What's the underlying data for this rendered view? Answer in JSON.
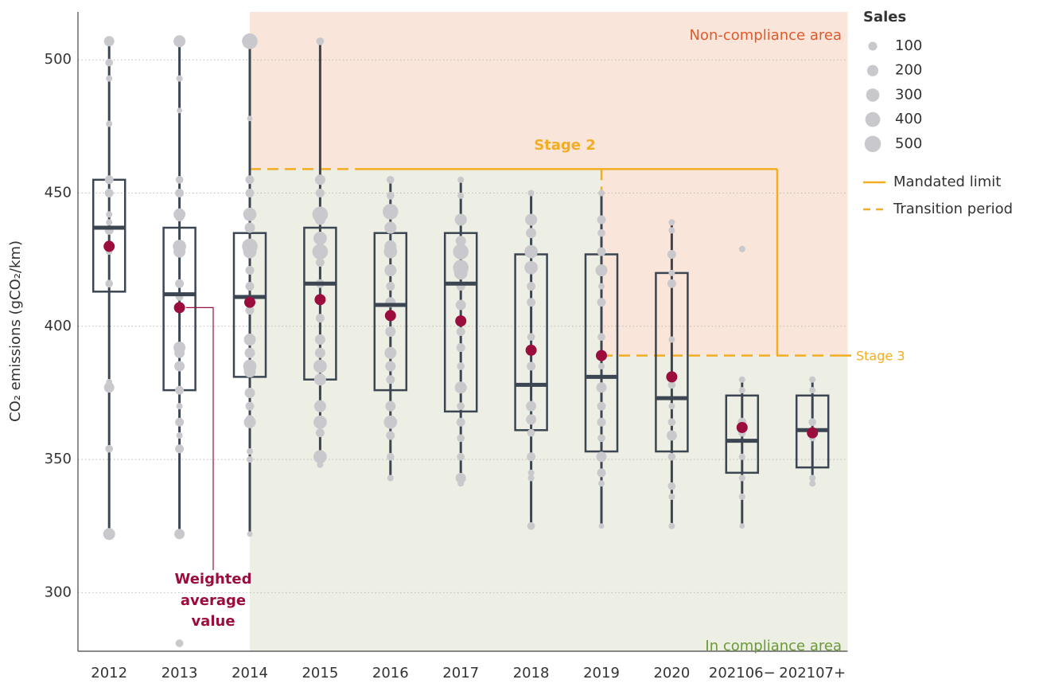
{
  "chart_data": {
    "type": "box",
    "y_label": "CO₂ emissions (gCO₂/km)",
    "categories": [
      "2012",
      "2013",
      "2014",
      "2015",
      "2016",
      "2017",
      "2018",
      "2019",
      "2020",
      "202106−",
      "202107+"
    ],
    "whisker_low": [
      322,
      322,
      322,
      348,
      343,
      341,
      325,
      325,
      325,
      325,
      341
    ],
    "q1": [
      413,
      376,
      381,
      380,
      376,
      368,
      361,
      353,
      353,
      345,
      347
    ],
    "median": [
      437,
      412,
      411,
      416,
      408,
      416,
      378,
      381,
      373,
      357,
      361
    ],
    "q3": [
      455,
      437,
      435,
      437,
      435,
      435,
      427,
      427,
      420,
      374,
      374
    ],
    "whisker_high": [
      507,
      507,
      507,
      507,
      455,
      455,
      450,
      450,
      439,
      380,
      380
    ],
    "mean": [
      430,
      407,
      409,
      410,
      404,
      402,
      391,
      389,
      381,
      362,
      360
    ],
    "box_color": "#3b4652",
    "mean_color": "#9b0d3d",
    "point_color": "#c9c8cc",
    "points": [
      {
        "values": [
          507,
          499,
          493,
          476,
          455,
          450,
          442,
          439,
          436,
          430,
          428,
          416,
          379,
          377,
          354,
          322
        ],
        "sales": [
          100,
          40,
          20,
          20,
          60,
          60,
          20,
          20,
          60,
          20,
          20,
          40,
          20,
          100,
          40,
          150
        ]
      },
      {
        "values": [
          507,
          493,
          481,
          455,
          450,
          442,
          441,
          430,
          428,
          416,
          411,
          407,
          392,
          390,
          385,
          376,
          370,
          364,
          359,
          354,
          322,
          281
        ],
        "sales": [
          150,
          20,
          10,
          40,
          60,
          150,
          60,
          200,
          150,
          60,
          40,
          40,
          150,
          100,
          100,
          60,
          20,
          60,
          20,
          60,
          100,
          40
        ]
      },
      {
        "values": [
          507,
          478,
          455,
          450,
          442,
          437,
          430,
          428,
          421,
          415,
          406,
          395,
          390,
          385,
          383,
          375,
          370,
          365,
          364,
          353,
          350,
          322
        ],
        "sales": [
          300,
          10,
          60,
          60,
          200,
          100,
          300,
          200,
          60,
          60,
          60,
          150,
          100,
          200,
          150,
          100,
          60,
          60,
          150,
          20,
          20,
          10
        ]
      },
      {
        "values": [
          507,
          455,
          450,
          442,
          440,
          433,
          428,
          424,
          416,
          410,
          403,
          395,
          390,
          385,
          380,
          370,
          364,
          360,
          351,
          348
        ],
        "sales": [
          40,
          100,
          60,
          300,
          100,
          200,
          300,
          60,
          60,
          100,
          60,
          100,
          100,
          200,
          150,
          150,
          200,
          60,
          200,
          20
        ]
      },
      {
        "values": [
          455,
          449,
          443,
          437,
          430,
          428,
          421,
          415,
          409,
          398,
          390,
          385,
          380,
          370,
          364,
          359,
          351,
          343
        ],
        "sales": [
          40,
          40,
          300,
          150,
          150,
          200,
          150,
          60,
          100,
          100,
          150,
          100,
          60,
          100,
          200,
          60,
          40,
          20
        ]
      },
      {
        "values": [
          455,
          449,
          440,
          432,
          428,
          422,
          420,
          415,
          408,
          398,
          392,
          385,
          377,
          370,
          364,
          358,
          351,
          343,
          341
        ],
        "sales": [
          20,
          20,
          150,
          100,
          300,
          300,
          200,
          60,
          100,
          60,
          60,
          40,
          150,
          40,
          60,
          40,
          40,
          100,
          20
        ]
      },
      {
        "values": [
          450,
          440,
          435,
          428,
          422,
          415,
          409,
          396,
          385,
          370,
          365,
          360,
          351,
          345,
          343,
          325
        ],
        "sales": [
          20,
          150,
          100,
          200,
          200,
          60,
          60,
          40,
          60,
          100,
          100,
          40,
          60,
          20,
          20,
          40
        ]
      },
      {
        "values": [
          450,
          440,
          435,
          428,
          421,
          415,
          409,
          396,
          385,
          377,
          370,
          364,
          358,
          351,
          345,
          341,
          325
        ],
        "sales": [
          20,
          60,
          40,
          60,
          150,
          20,
          60,
          40,
          20,
          100,
          60,
          60,
          40,
          100,
          60,
          20,
          10
        ]
      },
      {
        "values": [
          439,
          436,
          427,
          420,
          416,
          395,
          378,
          370,
          364,
          359,
          351,
          340,
          336,
          325
        ],
        "sales": [
          20,
          20,
          60,
          20,
          60,
          20,
          40,
          20,
          40,
          100,
          40,
          40,
          20,
          20
        ]
      },
      {
        "values": [
          429,
          380,
          376,
          364,
          360,
          351,
          343,
          336,
          325
        ],
        "sales": [
          20,
          20,
          20,
          60,
          40,
          20,
          20,
          20,
          10
        ]
      },
      {
        "values": [
          380,
          376,
          364,
          360,
          358,
          343,
          341
        ],
        "sales": [
          20,
          20,
          40,
          20,
          20,
          20,
          20
        ]
      }
    ],
    "ylim": [
      278,
      518
    ],
    "yticks": [
      300,
      350,
      400,
      450,
      500
    ],
    "grid": true,
    "limits": {
      "stage2": 459,
      "stage3": 389,
      "color": "#f2ad22"
    },
    "stage2_label": "Stage 2",
    "stage3_label": "Stage 3",
    "noncompliance_label": "Non-compliance area",
    "compliance_label": "In compliance area",
    "noncompliance_color": "#f9e5da",
    "compliance_color": "#edeee4",
    "mean_annotation": [
      "Weighted",
      "average",
      "value"
    ],
    "size_legend": {
      "title": "Sales",
      "values": [
        100,
        200,
        300,
        400,
        500
      ]
    },
    "line_legend": [
      "Mandated limit",
      "Transition period"
    ]
  }
}
